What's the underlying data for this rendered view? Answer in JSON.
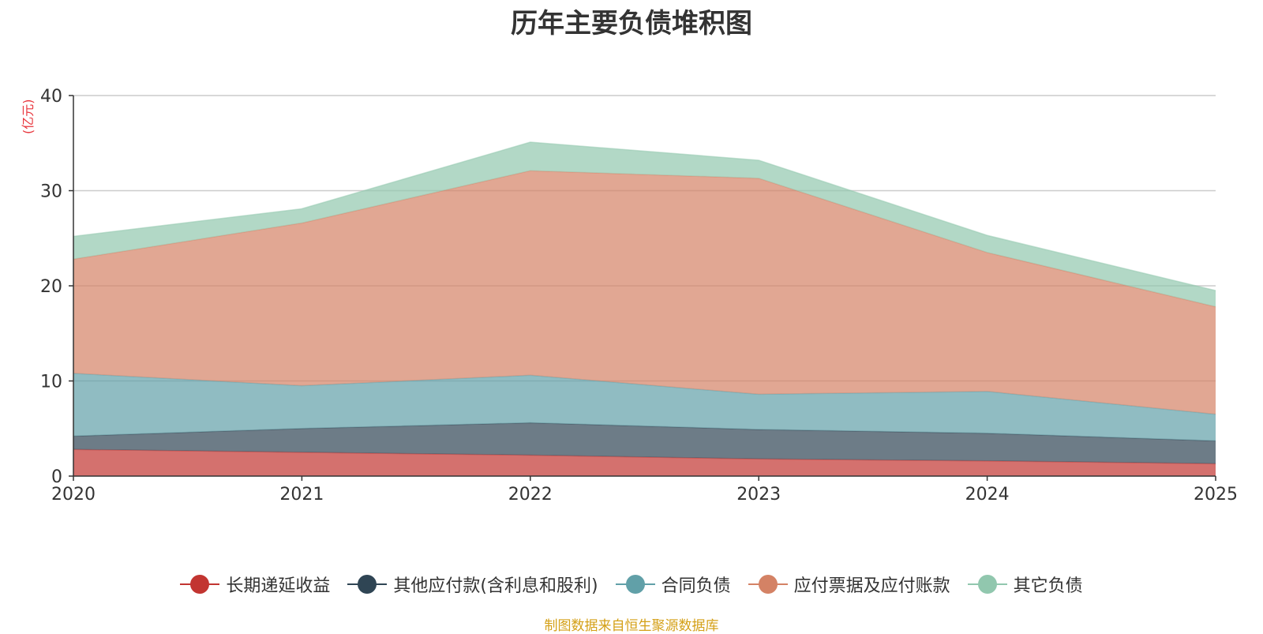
{
  "chart_data": {
    "type": "area",
    "stacked": true,
    "title": "历年主要负债堆积图",
    "ylabel": "(亿元)",
    "xlabel": "",
    "categories": [
      "2020",
      "2021",
      "2022",
      "2023",
      "2024",
      "2025"
    ],
    "ylim": [
      0,
      40
    ],
    "yticks": [
      0,
      10,
      20,
      30,
      40
    ],
    "grid": true,
    "legend_position": "bottom",
    "series": [
      {
        "name": "长期递延收益",
        "color": "#c23531",
        "values": [
          2.8,
          2.5,
          2.2,
          1.8,
          1.6,
          1.3
        ]
      },
      {
        "name": "其他应付款(含利息和股利)",
        "color": "#2f4554",
        "values": [
          1.4,
          2.5,
          3.4,
          3.1,
          2.9,
          2.4
        ]
      },
      {
        "name": "合同负债",
        "color": "#61a0a8",
        "values": [
          6.6,
          4.5,
          5.0,
          3.7,
          4.4,
          2.8
        ]
      },
      {
        "name": "应付票据及应付账款",
        "color": "#d48265",
        "values": [
          12.0,
          17.1,
          21.5,
          22.7,
          14.6,
          11.3
        ]
      },
      {
        "name": "其它负债",
        "color": "#91c7ae",
        "values": [
          2.4,
          1.5,
          3.0,
          1.9,
          1.8,
          1.7
        ]
      }
    ],
    "source_note": "制图数据来自恒生聚源数据库"
  }
}
